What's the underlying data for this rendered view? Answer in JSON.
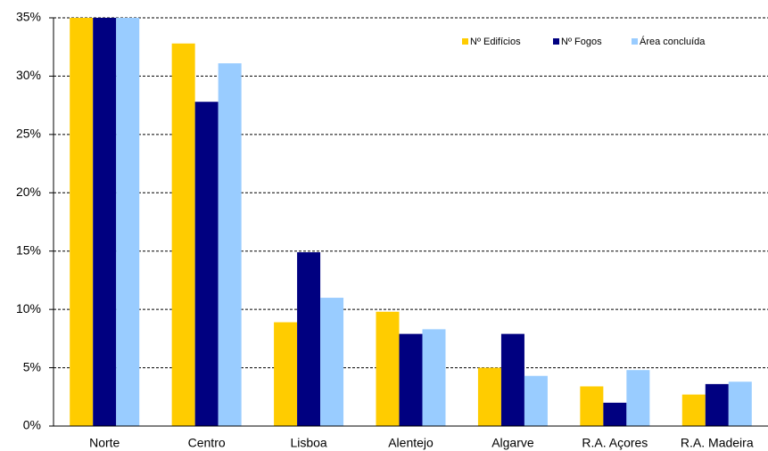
{
  "chart_data": {
    "type": "bar",
    "categories": [
      "Norte",
      "Centro",
      "Lisboa",
      "Alentejo",
      "Algarve",
      "R.A. Açores",
      "R.A. Madeira"
    ],
    "series": [
      {
        "name": "Nº Edifícios",
        "color": "#FFCC00",
        "values": [
          35,
          32.8,
          8.9,
          9.8,
          5.0,
          3.4,
          2.7
        ]
      },
      {
        "name": "Nº Fogos",
        "color": "#000080",
        "values": [
          35,
          27.8,
          14.9,
          7.9,
          7.9,
          2.0,
          3.6
        ]
      },
      {
        "name": "Área concluída",
        "color": "#99CCFF",
        "values": [
          35,
          31.1,
          11.0,
          8.3,
          4.3,
          4.8,
          3.8
        ]
      }
    ],
    "ylim": [
      0,
      35
    ],
    "yticks": [
      {
        "value": 0,
        "label": "0%"
      },
      {
        "value": 5,
        "label": "5%"
      },
      {
        "value": 10,
        "label": "10%"
      },
      {
        "value": 15,
        "label": "15%"
      },
      {
        "value": 20,
        "label": "20%"
      },
      {
        "value": 25,
        "label": "25%"
      },
      {
        "value": 30,
        "label": "30%"
      },
      {
        "value": 35,
        "label": "35%"
      }
    ],
    "grid": true,
    "legend": "top-right"
  }
}
